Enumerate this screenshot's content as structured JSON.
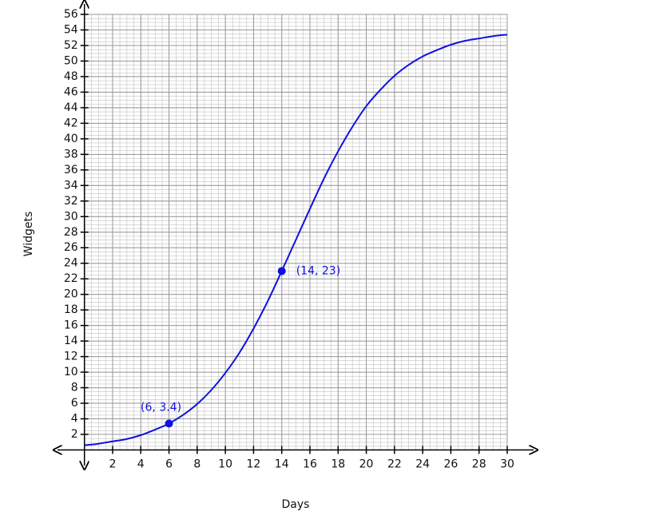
{
  "chart_data": {
    "type": "line",
    "x_label": "Days",
    "y_label": "Widgets",
    "xlim": [
      0,
      30
    ],
    "ylim": [
      0,
      56
    ],
    "xticks": [
      2,
      4,
      6,
      8,
      10,
      12,
      14,
      16,
      18,
      20,
      22,
      24,
      26,
      28,
      30
    ],
    "yticks": [
      2,
      4,
      6,
      8,
      10,
      12,
      14,
      16,
      18,
      20,
      22,
      24,
      26,
      28,
      30,
      32,
      34,
      36,
      38,
      40,
      42,
      44,
      46,
      48,
      50,
      52,
      54,
      56
    ],
    "grid": true,
    "x": [
      0,
      1,
      2,
      3,
      4,
      5,
      6,
      7,
      8,
      9,
      10,
      11,
      12,
      13,
      14,
      15,
      16,
      17,
      18,
      19,
      20,
      21,
      22,
      23,
      24,
      25,
      26,
      27,
      28,
      29,
      30
    ],
    "series": [
      {
        "color": "#1010e0",
        "values": [
          0.6,
          0.8,
          1.1,
          1.4,
          1.9,
          2.6,
          3.4,
          4.5,
          5.9,
          7.7,
          9.9,
          12.5,
          15.6,
          19.1,
          23.0,
          27.0,
          31.0,
          34.9,
          38.4,
          41.5,
          44.2,
          46.3,
          48.1,
          49.5,
          50.6,
          51.4,
          52.1,
          52.6,
          52.9,
          53.2,
          53.4
        ]
      }
    ],
    "points": [
      {
        "x": 6,
        "y": 3.4,
        "label": "(6, 3.4)"
      },
      {
        "x": 14,
        "y": 23,
        "label": "(14, 23)"
      }
    ]
  }
}
